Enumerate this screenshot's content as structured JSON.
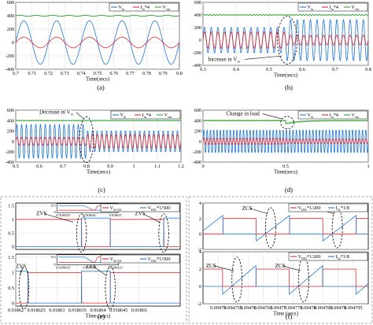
{
  "figure": {
    "colors": {
      "v_in": "#1f77d4",
      "i_in": "#e8252b",
      "v_out": "#2ca02c",
      "dashed": "#000000"
    }
  },
  "chart_data": [
    {
      "id": "a",
      "type": "line",
      "caption": "(a)",
      "xlabel": "Time(secs)",
      "xlim": [
        0.7,
        0.8
      ],
      "ylim": [
        -400,
        600
      ],
      "xticks": [
        {
          "v": 0.7,
          "t": "0.7"
        },
        {
          "v": 0.71,
          "t": "0.71"
        },
        {
          "v": 0.72,
          "t": "0.72"
        },
        {
          "v": 0.73,
          "t": "0.73"
        },
        {
          "v": 0.74,
          "t": "0.74"
        },
        {
          "v": 0.75,
          "t": "0.75"
        },
        {
          "v": 0.76,
          "t": "0.76"
        },
        {
          "v": 0.77,
          "t": "0.77"
        },
        {
          "v": 0.78,
          "t": "0.78"
        },
        {
          "v": 0.79,
          "t": "0.79"
        },
        {
          "v": 0.8,
          "t": "0.8"
        }
      ],
      "yticks": [
        {
          "v": -400,
          "t": "-400"
        },
        {
          "v": -200,
          "t": "-200"
        },
        {
          "v": 0,
          "t": "0"
        },
        {
          "v": 200,
          "t": "200"
        },
        {
          "v": 400,
          "t": "400"
        },
        {
          "v": 600,
          "t": "600"
        }
      ],
      "legend": [
        {
          "key": "v_in",
          "label": "V",
          "sub": "in",
          "suffix": ""
        },
        {
          "key": "i_in",
          "label": "I",
          "sub": "in",
          "suffix": "*4"
        },
        {
          "key": "v_out",
          "label": "V",
          "sub": "out",
          "suffix": ""
        }
      ],
      "series": [
        {
          "key": "v_in",
          "kind": "sine",
          "amp": 325,
          "freq": 50,
          "phase": 0
        },
        {
          "key": "i_in",
          "kind": "sine",
          "amp": 80,
          "freq": 50,
          "phase": 0
        },
        {
          "key": "v_out",
          "kind": "dc",
          "level": 400,
          "ripple": 8,
          "ripple_freq": 100
        }
      ],
      "annotations": []
    },
    {
      "id": "b",
      "type": "line",
      "caption": "(b)",
      "xlabel": "Time(secs)",
      "xlim": [
        0.3,
        0.8
      ],
      "ylim": [
        -400,
        600
      ],
      "xticks": [
        {
          "v": 0.3,
          "t": "0.3"
        },
        {
          "v": 0.4,
          "t": "0.4"
        },
        {
          "v": 0.5,
          "t": "0.5"
        },
        {
          "v": 0.6,
          "t": "0.6"
        },
        {
          "v": 0.7,
          "t": "0.7"
        },
        {
          "v": 0.8,
          "t": "0.8"
        }
      ],
      "yticks": [
        {
          "v": -400,
          "t": "-400"
        },
        {
          "v": -200,
          "t": "-200"
        },
        {
          "v": 0,
          "t": "0"
        },
        {
          "v": 200,
          "t": "200"
        },
        {
          "v": 400,
          "t": "400"
        },
        {
          "v": 600,
          "t": "600"
        }
      ],
      "legend": [
        {
          "key": "v_in",
          "label": "V",
          "sub": "in",
          "suffix": ""
        },
        {
          "key": "i_in",
          "label": "I",
          "sub": "in",
          "suffix": "*4"
        },
        {
          "key": "v_out",
          "label": "V",
          "sub": "out",
          "suffix": ""
        }
      ],
      "series": [
        {
          "key": "v_in",
          "kind": "step_sine",
          "amp1": 200,
          "amp2": 325,
          "t_step": 0.55,
          "freq": 50
        },
        {
          "key": "i_in",
          "kind": "step_sine",
          "amp1": 130,
          "amp2": 80,
          "t_step": 0.55,
          "freq": 50
        },
        {
          "key": "v_out",
          "kind": "dc",
          "level": 400,
          "ripple": 8,
          "ripple_freq": 100
        }
      ],
      "annotations": [
        {
          "type": "ellipse",
          "x": 0.555,
          "y": 0,
          "rx": 0.03,
          "ry": 380
        },
        {
          "type": "label",
          "text": "Increase in V",
          "sub": "in",
          "x": 0.315,
          "y": -330,
          "arrow_to": [
            0.54,
            -250
          ]
        }
      ]
    },
    {
      "id": "c",
      "type": "line",
      "caption": "(c)",
      "xlabel": "Time(secs)",
      "xlim": [
        0.5,
        1.2
      ],
      "ylim": [
        -400,
        600
      ],
      "xticks": [
        {
          "v": 0.5,
          "t": "0.5"
        },
        {
          "v": 0.6,
          "t": "0.6"
        },
        {
          "v": 0.7,
          "t": "0.7"
        },
        {
          "v": 0.8,
          "t": "0.8"
        },
        {
          "v": 0.9,
          "t": "0.9"
        },
        {
          "v": 1.0,
          "t": "1"
        },
        {
          "v": 1.1,
          "t": "1.1"
        },
        {
          "v": 1.2,
          "t": "1.2"
        }
      ],
      "yticks": [
        {
          "v": -400,
          "t": "-400"
        },
        {
          "v": -200,
          "t": "-200"
        },
        {
          "v": 0,
          "t": "0"
        },
        {
          "v": 200,
          "t": "200"
        },
        {
          "v": 400,
          "t": "400"
        },
        {
          "v": 600,
          "t": "600"
        }
      ],
      "legend": [
        {
          "key": "v_in",
          "label": "V",
          "sub": "in",
          "suffix": ""
        },
        {
          "key": "i_in",
          "label": "I",
          "sub": "in",
          "suffix": "*4"
        },
        {
          "key": "v_out",
          "label": "V",
          "sub": "out",
          "suffix": ""
        }
      ],
      "series": [
        {
          "key": "v_in",
          "kind": "step_sine",
          "amp1": 325,
          "amp2": 200,
          "t_step": 0.8,
          "freq": 50
        },
        {
          "key": "i_in",
          "kind": "step_sine",
          "amp1": 80,
          "amp2": 130,
          "t_step": 0.8,
          "freq": 50
        },
        {
          "key": "v_out",
          "kind": "dc",
          "level": 400,
          "ripple": 8,
          "ripple_freq": 100
        }
      ],
      "annotations": [
        {
          "type": "ellipse",
          "x": 0.8,
          "y": 30,
          "rx": 0.03,
          "ry": 440
        },
        {
          "type": "label",
          "text": "Decrease in V",
          "sub": "in",
          "x": 0.6,
          "y": 530,
          "arrow_to": [
            0.785,
            440
          ]
        }
      ]
    },
    {
      "id": "d",
      "type": "line",
      "caption": "(d)",
      "xlabel": "Time(secs)",
      "xlim": [
        0.0,
        1.0
      ],
      "ylim": [
        -400,
        600
      ],
      "xticks": [
        {
          "v": 0.0,
          "t": "0"
        },
        {
          "v": 0.5,
          "t": "0.5"
        },
        {
          "v": 1.0,
          "t": "1"
        }
      ],
      "yticks": [
        {
          "v": -400,
          "t": "-400"
        },
        {
          "v": -200,
          "t": "-200"
        },
        {
          "v": 0,
          "t": "0"
        },
        {
          "v": 200,
          "t": "200"
        },
        {
          "v": 400,
          "t": "400"
        },
        {
          "v": 600,
          "t": "600"
        }
      ],
      "legend": [
        {
          "key": "v_in",
          "label": "V",
          "sub": "in",
          "suffix": ""
        },
        {
          "key": "i_in",
          "label": "I",
          "sub": "in",
          "suffix": "*4"
        },
        {
          "key": "v_out",
          "label": "V",
          "sub": "out",
          "suffix": ""
        }
      ],
      "series": [
        {
          "key": "v_in",
          "kind": "sine",
          "amp": 220,
          "freq": 50,
          "phase": 0
        },
        {
          "key": "i_in",
          "kind": "step_sine",
          "amp1": 60,
          "amp2": 45,
          "t_step": 0.5,
          "freq": 50
        },
        {
          "key": "v_out",
          "kind": "dip_dc",
          "level": 400,
          "dip": 60,
          "t_step": 0.5,
          "ripple": 8,
          "ripple_freq": 100
        }
      ],
      "annotations": [
        {
          "type": "ellipse",
          "x": 0.51,
          "y": 360,
          "rx": 0.04,
          "ry": 120
        },
        {
          "type": "label",
          "text": "Change in load",
          "sub": "",
          "x": 0.14,
          "y": 500,
          "arrow_to": [
            0.48,
            430
          ]
        }
      ]
    },
    {
      "id": "e1",
      "type": "line",
      "caption": "",
      "xlabel": "",
      "xlim": [
        0.91862,
        0.91866
      ],
      "ylim": [
        -0.1,
        1.6
      ],
      "xticks": [],
      "yticks": [
        {
          "v": 0,
          "t": "0"
        },
        {
          "v": 0.5,
          "t": "0.5"
        },
        {
          "v": 1,
          "t": "1"
        },
        {
          "v": 1.5,
          "t": "1.5"
        }
      ],
      "legend": [
        {
          "key": "i_in",
          "label": "V",
          "sub": "S1-GS",
          "suffix": ""
        },
        {
          "key": "v_in",
          "label": "V",
          "sub": "DS1",
          "suffix": "*1/500"
        }
      ],
      "series": [
        {
          "key": "i_in",
          "kind": "gate",
          "level": 1.0,
          "on": [
            [
              0.91862,
              0.918636
            ],
            [
              0.918643,
              0.918656
            ]
          ]
        },
        {
          "key": "v_in",
          "kind": "drain",
          "level": 1.05,
          "on": [
            [
              0.918636,
              0.918643
            ],
            [
              0.918656,
              0.91866
            ]
          ]
        }
      ],
      "annotations": [
        {
          "type": "ellipse",
          "x": 0.918636,
          "y": 0.5,
          "rx": 1.2e-06,
          "ry": 0.7
        },
        {
          "type": "ellipse",
          "x": 0.918656,
          "y": 0.5,
          "rx": 1.2e-06,
          "ry": 0.7
        },
        {
          "type": "label",
          "text": "ZVS",
          "sub": "",
          "x": 0.918625,
          "y": 1.15,
          "arrow_to": [
            0.918634,
            0.9
          ]
        },
        {
          "type": "label",
          "text": "ZVS",
          "sub": "",
          "x": 0.918649,
          "y": 1.15,
          "arrow_to": [
            0.918655,
            0.9
          ]
        },
        {
          "type": "inset",
          "x0": 0.91863,
          "x1": 0.918645,
          "y0": 1.25,
          "y1": 1.58,
          "yticks": [
            {
              "v": 0.5,
              "t": "0.5"
            },
            {
              "v": 0,
              "t": "0"
            }
          ],
          "xticks": [
            {
              "t": "0.9186355"
            },
            {
              "t": "0.918636"
            },
            {
              "t": "0.918637"
            }
          ]
        }
      ]
    },
    {
      "id": "e2",
      "type": "line",
      "caption": "(e)",
      "xlabel": "Time (secs)",
      "xlim": [
        0.91862,
        0.91866
      ],
      "ylim": [
        -0.1,
        1.6
      ],
      "xticks": [
        {
          "v": 0.91862,
          "t": "0.91862"
        },
        {
          "v": 0.918625,
          "t": "0.918625"
        },
        {
          "v": 0.91863,
          "t": "0.91863"
        },
        {
          "v": 0.918635,
          "t": "0.918635"
        },
        {
          "v": 0.91864,
          "t": "0.91864"
        },
        {
          "v": 0.918645,
          "t": "0.918645"
        },
        {
          "v": 0.91865,
          "t": "0.91865"
        }
      ],
      "yticks": [
        {
          "v": 0,
          "t": "0"
        },
        {
          "v": 0.5,
          "t": "0.5"
        },
        {
          "v": 1,
          "t": "1"
        },
        {
          "v": 1.5,
          "t": "1.5"
        }
      ],
      "legend": [
        {
          "key": "i_in",
          "label": "V",
          "sub": "S2-GS",
          "suffix": ""
        },
        {
          "key": "v_in",
          "label": "V",
          "sub": "DS2",
          "suffix": "*1/500"
        }
      ],
      "series": [
        {
          "key": "i_in",
          "kind": "gate",
          "level": 1.0,
          "on": [
            [
              0.918623,
              0.918636
            ],
            [
              0.918643,
              0.91866
            ]
          ]
        },
        {
          "key": "v_in",
          "kind": "drain",
          "level": 1.05,
          "on": [
            [
              0.91862,
              0.918623
            ],
            [
              0.918636,
              0.918643
            ]
          ]
        }
      ],
      "annotations": [
        {
          "type": "ellipse",
          "x": 0.918622,
          "y": 0.5,
          "rx": 1.2e-06,
          "ry": 0.7
        },
        {
          "type": "ellipse",
          "x": 0.918643,
          "y": 0.5,
          "rx": 1.2e-06,
          "ry": 0.7
        },
        {
          "type": "label",
          "text": "ZVS",
          "sub": "",
          "x": 0.91862,
          "y": 1.15,
          "arrow_to": [
            0.918621,
            0.9
          ]
        },
        {
          "type": "label",
          "text": "ZVS",
          "sub": "",
          "x": 0.918637,
          "y": 1.15,
          "arrow_to": [
            0.918642,
            0.9
          ]
        },
        {
          "type": "inset",
          "x0": 0.91863,
          "x1": 0.918645,
          "y0": 1.25,
          "y1": 1.58,
          "yticks": [
            {
              "v": 0.5,
              "t": "0.5"
            },
            {
              "v": 0,
              "t": "0"
            }
          ],
          "xticks": [
            {
              "t": "0.9186415"
            },
            {
              "t": "0.918642"
            },
            {
              "t": "0.9186425"
            }
          ]
        }
      ]
    },
    {
      "id": "f1",
      "type": "line",
      "caption": "",
      "xlabel": "",
      "xlim": [
        0.094745,
        0.0948
      ],
      "ylim": [
        -2,
        4
      ],
      "xticks": [],
      "yticks": [
        {
          "v": -2,
          "t": "-2"
        },
        {
          "v": 0,
          "t": "0"
        },
        {
          "v": 2,
          "t": "2"
        },
        {
          "v": 4,
          "t": "4"
        }
      ],
      "legend": [
        {
          "key": "i_in",
          "label": "V",
          "sub": "DS1",
          "suffix": "*1/200"
        },
        {
          "key": "v_in",
          "label": "I",
          "sub": "S1",
          "suffix": "*1/8"
        }
      ],
      "series": [
        {
          "key": "i_in",
          "kind": "switch_v",
          "level": 2.0,
          "period": 2.22e-05,
          "duty_off": 0.5,
          "phase": 2e-06
        },
        {
          "key": "v_in",
          "kind": "switch_i",
          "level": 2.0,
          "period": 2.22e-05,
          "duty_off": 0.5,
          "phase": 2e-06
        }
      ],
      "annotations": [
        {
          "type": "ellipse",
          "x": 0.0947675,
          "y": 0.8,
          "rx": 1.7e-06,
          "ry": 2.6
        },
        {
          "type": "ellipse",
          "x": 0.0947897,
          "y": 0.8,
          "rx": 1.7e-06,
          "ry": 2.6
        },
        {
          "type": "label",
          "text": "ZCS",
          "sub": "",
          "x": 0.094758,
          "y": 3.1,
          "arrow_to": [
            0.0947665,
            2.6
          ]
        },
        {
          "type": "label",
          "text": "ZCS",
          "sub": "",
          "x": 0.09478,
          "y": 3.1,
          "arrow_to": [
            0.0947887,
            2.6
          ]
        }
      ]
    },
    {
      "id": "f2",
      "type": "line",
      "caption": "(f)",
      "xlabel": "Time (secs)",
      "xlim": [
        0.094745,
        0.0948
      ],
      "ylim": [
        -2,
        4
      ],
      "xticks": [
        {
          "v": 0.09475,
          "t": "0.09475"
        },
        {
          "v": 0.094755,
          "t": "0.094755"
        },
        {
          "v": 0.09476,
          "t": "0.09476"
        },
        {
          "v": 0.094765,
          "t": "0.094765"
        },
        {
          "v": 0.09477,
          "t": "0.09477"
        },
        {
          "v": 0.094775,
          "t": "0.094775"
        },
        {
          "v": 0.09478,
          "t": "0.09478"
        },
        {
          "v": 0.094785,
          "t": "0.094785"
        },
        {
          "v": 0.09479,
          "t": "0.09479"
        },
        {
          "v": 0.094795,
          "t": "0.094795"
        }
      ],
      "yticks": [
        {
          "v": -2,
          "t": "-2"
        },
        {
          "v": 0,
          "t": "0"
        },
        {
          "v": 2,
          "t": "2"
        },
        {
          "v": 4,
          "t": "4"
        }
      ],
      "legend": [
        {
          "key": "i_in",
          "label": "V",
          "sub": "DS2",
          "suffix": "*1/200"
        },
        {
          "key": "v_in",
          "label": "I",
          "sub": "S2",
          "suffix": "*1/8"
        }
      ],
      "series": [
        {
          "key": "i_in",
          "kind": "switch_v",
          "level": 2.0,
          "period": 2.22e-05,
          "duty_off": 0.5,
          "phase": -9.2e-06
        },
        {
          "key": "v_in",
          "kind": "switch_i",
          "level": 2.0,
          "period": 2.22e-05,
          "duty_off": 0.5,
          "phase": -9.2e-06
        }
      ],
      "annotations": [
        {
          "type": "ellipse",
          "x": 0.0947563,
          "y": 0.8,
          "rx": 1.7e-06,
          "ry": 2.6
        },
        {
          "type": "ellipse",
          "x": 0.0947785,
          "y": 0.8,
          "rx": 1.7e-06,
          "ry": 2.6
        },
        {
          "type": "label",
          "text": "ZCS",
          "sub": "",
          "x": 0.094746,
          "y": 2.2,
          "arrow_to": [
            0.0947553,
            1.8
          ]
        },
        {
          "type": "label",
          "text": "ZCS",
          "sub": "",
          "x": 0.094769,
          "y": 2.2,
          "arrow_to": [
            0.0947775,
            1.8
          ]
        }
      ]
    }
  ]
}
